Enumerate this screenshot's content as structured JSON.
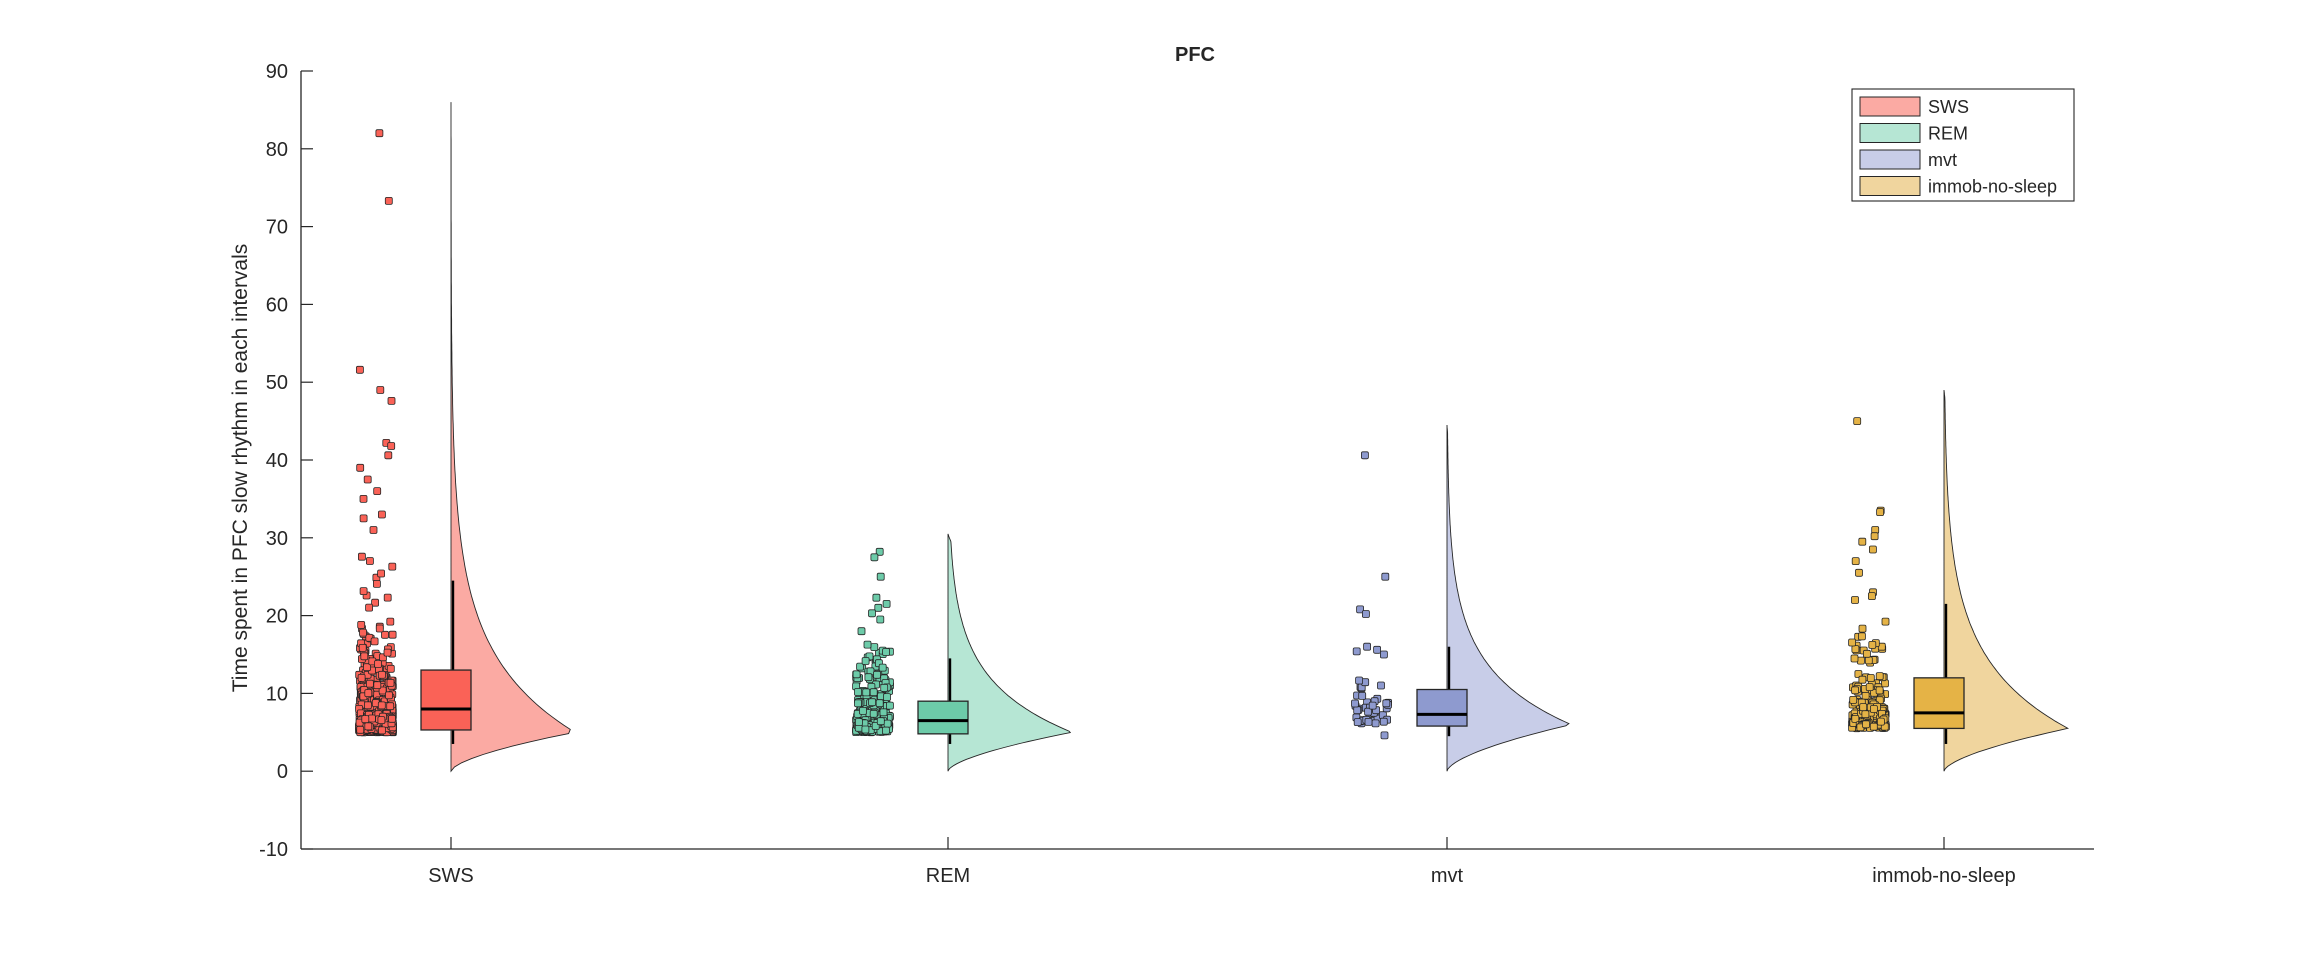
{
  "chart_data": {
    "type": "raincloud",
    "title": "PFC",
    "ylabel": "Time spent in PFC slow rhythm in each intervals",
    "xlabel": "",
    "ylim": [
      -10,
      90
    ],
    "yticks": [
      -10,
      0,
      10,
      20,
      30,
      40,
      50,
      60,
      70,
      80,
      90
    ],
    "categories": [
      "SWS",
      "REM",
      "mvt",
      "immob-no-sleep"
    ],
    "legend": {
      "placement": "top-right",
      "entries": [
        "SWS",
        "REM",
        "mvt",
        "immob-no-sleep"
      ]
    },
    "series": [
      {
        "name": "SWS",
        "color_fill": "#FA6257",
        "color_light": "#FBAAA3",
        "box": {
          "q1": 5.3,
          "median": 8.0,
          "q3": 13.0,
          "whisker_low": 3.5,
          "whisker_high": 24.5
        },
        "violin_max": 86,
        "density_mode": 5.0,
        "n_points": 900,
        "outliers": [
          82,
          73.3,
          51.6,
          49,
          47.6,
          42.2,
          41.8,
          40.6,
          39,
          37.5,
          36,
          35,
          33,
          32.5,
          31
        ],
        "point_cluster_max": 28
      },
      {
        "name": "REM",
        "color_fill": "#6DCBA9",
        "color_light": "#B6E6D4",
        "box": {
          "q1": 4.8,
          "median": 6.5,
          "q3": 9.0,
          "whisker_low": 3.5,
          "whisker_high": 14.5
        },
        "violin_max": 30.5,
        "density_mode": 5.0,
        "n_points": 300,
        "outliers": [
          28.2,
          27.5,
          25,
          22.3,
          21.5,
          21,
          20.3,
          19.5,
          18
        ],
        "point_cluster_max": 17
      },
      {
        "name": "mvt",
        "color_fill": "#8E9ACF",
        "color_light": "#C8CDE8",
        "box": {
          "q1": 5.8,
          "median": 7.3,
          "q3": 10.5,
          "whisker_low": 4.5,
          "whisker_high": 16.0
        },
        "violin_max": 44.5,
        "density_mode": 6.0,
        "n_points": 45,
        "outliers": [
          40.6,
          25,
          20.8,
          20.2,
          16,
          15.6,
          15.4,
          15
        ],
        "point_cluster_max": 12
      },
      {
        "name": "immob-no-sleep",
        "color_fill": "#E5B346",
        "color_light": "#F0D59E",
        "box": {
          "q1": 5.5,
          "median": 7.5,
          "q3": 12.0,
          "whisker_low": 3.5,
          "whisker_high": 21.5
        },
        "violin_max": 49,
        "density_mode": 5.5,
        "n_points": 250,
        "outliers": [
          45,
          33.5,
          33.3,
          31,
          30.2,
          29.5,
          28.5,
          27,
          25.5,
          23,
          22.5,
          22
        ],
        "point_cluster_max": 20
      }
    ]
  }
}
